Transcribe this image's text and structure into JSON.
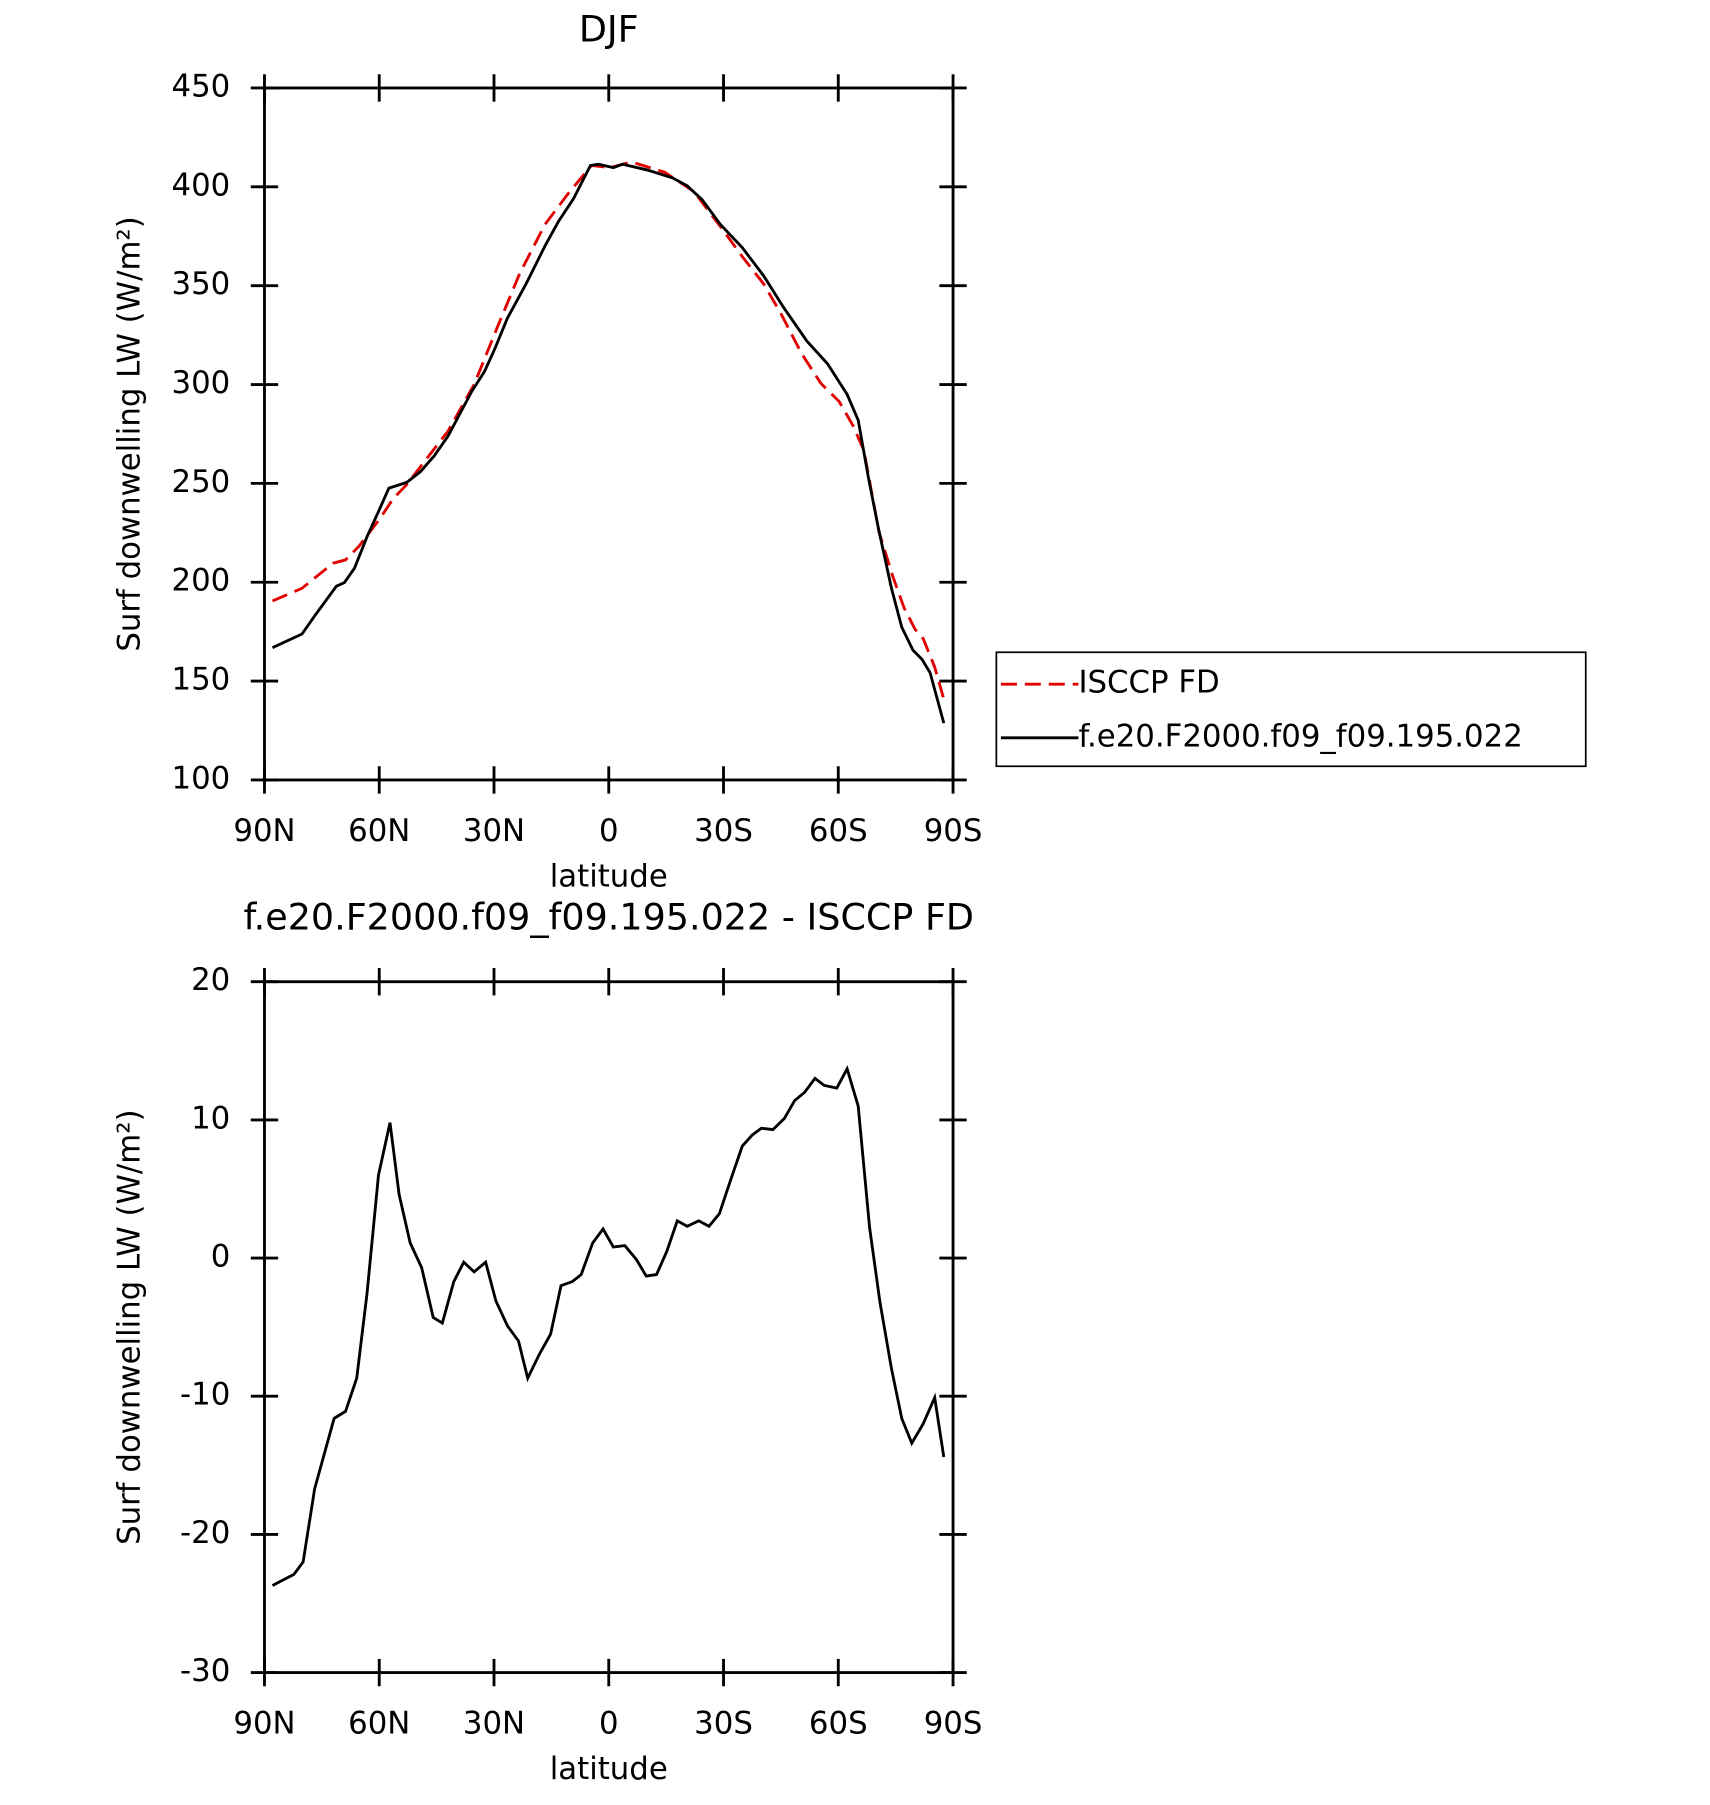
{
  "chart_data": [
    {
      "type": "line",
      "title": "DJF",
      "xlabel": "latitude",
      "ylabel": "Surf downwelling LW (W/m²)",
      "xlim": [
        90,
        -90
      ],
      "ylim": [
        100,
        450
      ],
      "xticks": [
        {
          "value": 90,
          "label": "90N"
        },
        {
          "value": 60,
          "label": "60N"
        },
        {
          "value": 30,
          "label": "30N"
        },
        0,
        {
          "value": -30,
          "label": "30S"
        },
        {
          "value": -60,
          "label": "60S"
        },
        {
          "value": -90,
          "label": "90S"
        }
      ],
      "yticks": [
        100,
        150,
        200,
        250,
        300,
        350,
        400,
        450
      ],
      "legend": "right",
      "series": [
        {
          "name": "ISCCP FD",
          "color": "#e00000",
          "dashed": true,
          "x": [
            87.9,
            80.2,
            72.1,
            68.8,
            65.3,
            59.9,
            56.3,
            52.8,
            47.1,
            42.0,
            35.2,
            28.9,
            23.3,
            16.7,
            10.7,
            4.5,
            -0.3,
            -6.0,
            -14.6,
            -22.3,
            -29.5,
            -34.9,
            -40.5,
            -45.0,
            -50.4,
            -55.4,
            -60.2,
            -63.8,
            -66.7,
            -70.6,
            -74.2,
            -77.2,
            -80.1,
            -82.2,
            -85.2,
            -87.6
          ],
          "values": [
            190.5,
            196.9,
            209.6,
            211.3,
            218.2,
            232,
            242.4,
            249.4,
            263.8,
            276.5,
            300,
            330,
            356,
            380.9,
            396.4,
            410.8,
            409.7,
            412.6,
            407.4,
            397.6,
            379.1,
            364.7,
            350.9,
            335.9,
            315.7,
            300.7,
            291.5,
            279.4,
            266.7,
            225.7,
            203.2,
            187.1,
            176.1,
            171.5,
            157.1,
            140.9
          ]
        },
        {
          "name": "f.e20.F2000.f09_f09.195.022",
          "color": "#000000",
          "dashed": false,
          "x": [
            87.9,
            80.2,
            76.9,
            71.2,
            69.1,
            66.5,
            63.2,
            59.9,
            57.5,
            52.8,
            49.2,
            45.6,
            42.0,
            35.8,
            32.5,
            29.8,
            26.5,
            21.5,
            16.7,
            13.1,
            9.2,
            4.8,
            2.7,
            -1.2,
            -3.6,
            -10.1,
            -16.7,
            -20.5,
            -24.4,
            -29.2,
            -34.9,
            -40.5,
            -45.6,
            -51.8,
            -57.2,
            -62.3,
            -65.2,
            -67.9,
            -70.6,
            -73.9,
            -76.6,
            -79.5,
            -81.9,
            -84.0,
            -87.6
          ],
          "values": [
            166.9,
            173.8,
            183,
            198,
            199.8,
            207,
            223,
            237,
            247.6,
            250.5,
            256,
            264,
            274,
            296.6,
            306.5,
            318,
            333.6,
            351.4,
            370,
            382.6,
            394,
            410.8,
            411.4,
            409.7,
            411.4,
            408.5,
            404.5,
            400.5,
            393.5,
            380.9,
            369.3,
            355,
            339.3,
            322,
            310.5,
            295,
            282,
            252.8,
            226.3,
            196.9,
            177.3,
            165.7,
            161,
            154.2,
            128.8
          ]
        }
      ]
    },
    {
      "type": "line",
      "title": "f.e20.F2000.f09_f09.195.022 - ISCCP FD",
      "xlabel": "latitude",
      "ylabel": "Surf downwelling LW (W/m²)",
      "xlim": [
        90,
        -90
      ],
      "ylim": [
        -30,
        20
      ],
      "xticks": [
        {
          "value": 90,
          "label": "90N"
        },
        {
          "value": 60,
          "label": "60N"
        },
        {
          "value": 30,
          "label": "30N"
        },
        0,
        {
          "value": -30,
          "label": "30S"
        },
        {
          "value": -60,
          "label": "60S"
        },
        {
          "value": -90,
          "label": "90S"
        }
      ],
      "yticks": [
        -30,
        -20,
        -10,
        0,
        10,
        20
      ],
      "series": [
        {
          "color": "#000000",
          "dashed": false,
          "x": [
            87.9,
            82.3,
            79.9,
            76.9,
            71.8,
            68.8,
            65.9,
            63.2,
            60.2,
            57.2,
            54.8,
            51.9,
            48.9,
            45.9,
            43.5,
            40.5,
            37.9,
            35.2,
            32.2,
            29.5,
            26.5,
            23.6,
            21.2,
            18.2,
            15.2,
            12.5,
            9.5,
            7.2,
            4.2,
            1.5,
            -1.2,
            -4.2,
            -7.2,
            -9.8,
            -12.5,
            -15.2,
            -17.9,
            -20.5,
            -23.5,
            -26.2,
            -28.9,
            -31.8,
            -34.9,
            -37.5,
            -39.9,
            -42.9,
            -45.9,
            -48.6,
            -51.2,
            -53.9,
            -56.3,
            -59.6,
            -62.3,
            -65.2,
            -68.2,
            -70.9,
            -73.9,
            -76.6,
            -79.2,
            -82.2,
            -85.2,
            -87.6
          ],
          "values": [
            -23.7,
            -22.9,
            -22.0,
            -16.7,
            -11.6,
            -11.1,
            -8.7,
            -2.6,
            6.0,
            9.8,
            4.6,
            1.1,
            -0.7,
            -4.3,
            -4.7,
            -1.7,
            -0.3,
            -1.0,
            -0.3,
            -3.1,
            -4.9,
            -6.0,
            -8.7,
            -7.0,
            -5.5,
            -2.0,
            -1.7,
            -1.2,
            1.1,
            2.1,
            0.8,
            0.9,
            -0.1,
            -1.3,
            -1.2,
            0.5,
            2.7,
            2.3,
            2.7,
            2.3,
            3.2,
            5.6,
            8.1,
            8.9,
            9.4,
            9.3,
            10.1,
            11.4,
            12.0,
            13.0,
            12.5,
            12.3,
            13.7,
            11.0,
            2.2,
            -3.2,
            -8.0,
            -11.6,
            -13.4,
            -12.0,
            -10.1,
            -14.4
          ]
        }
      ]
    }
  ]
}
